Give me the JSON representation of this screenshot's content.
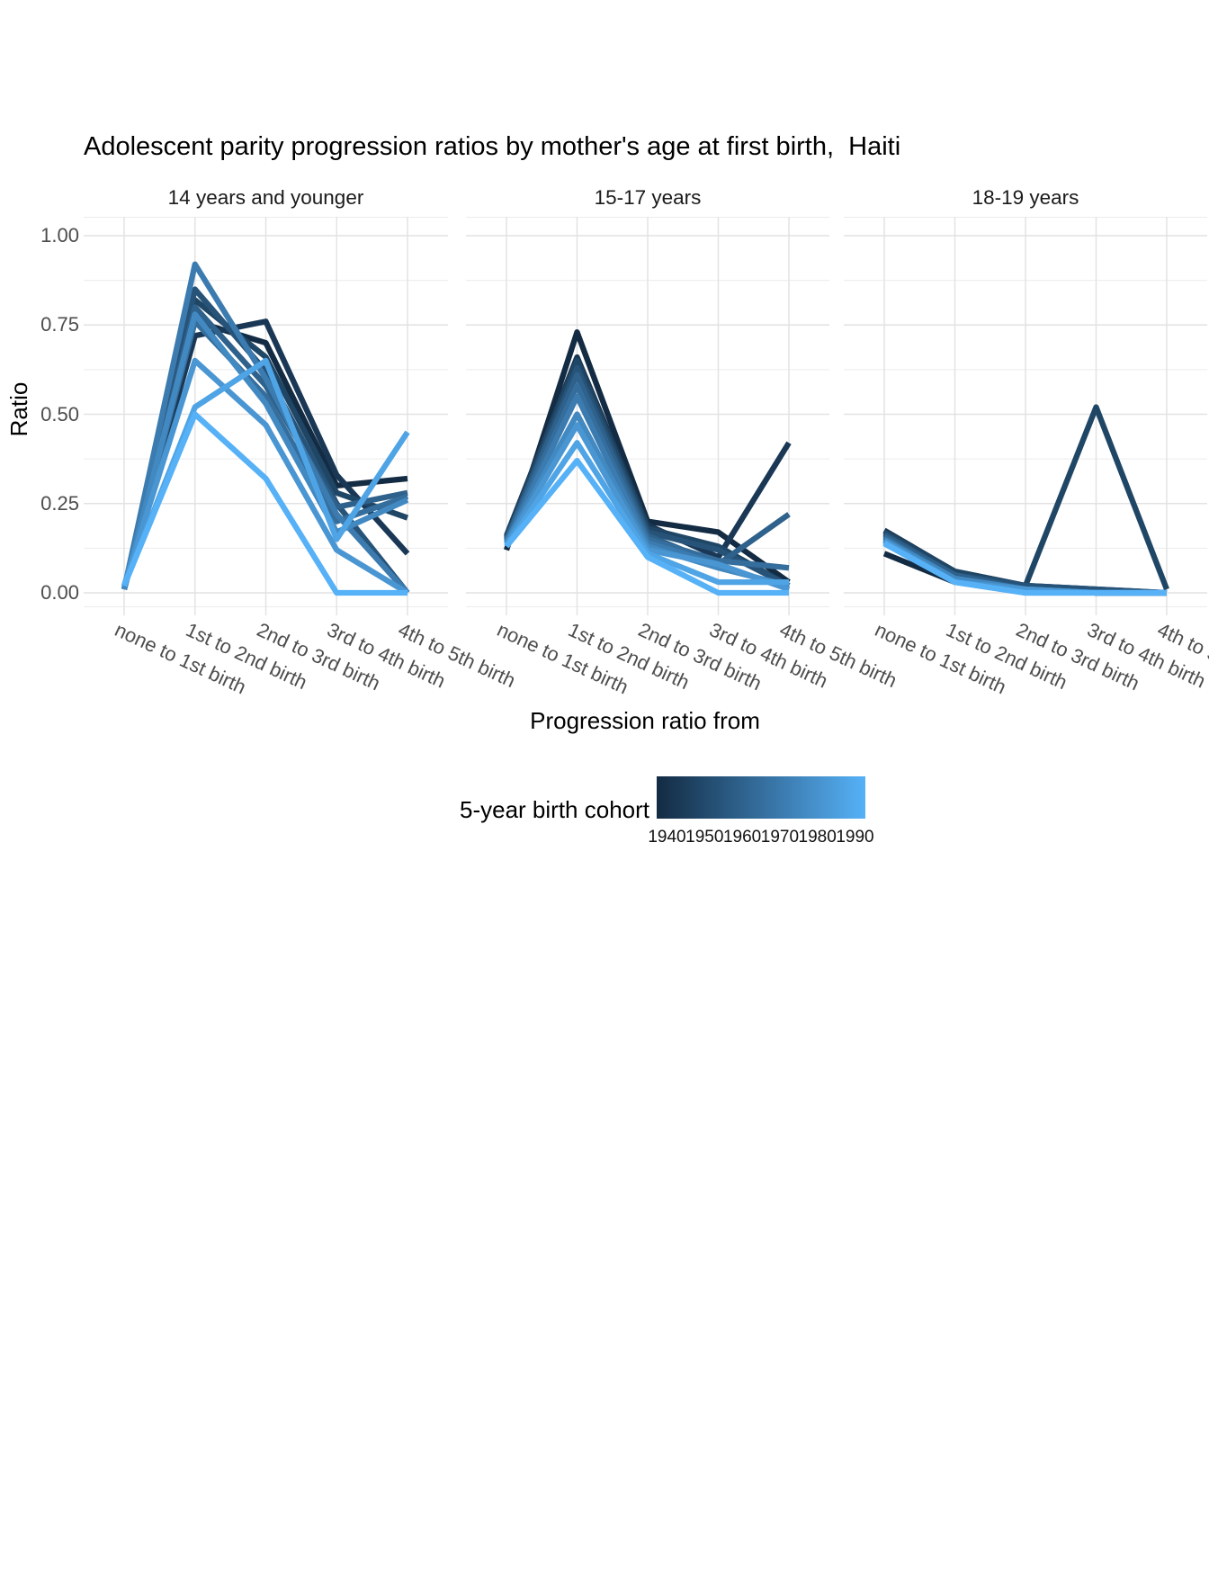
{
  "chart_data": {
    "type": "line",
    "title": "Adolescent parity progression ratios by mother's age at first birth,  Haiti",
    "xlabel": "Progression ratio from",
    "ylabel": "Ratio",
    "grid": "on",
    "ylim": [
      0,
      1
    ],
    "y_ticks": [
      {
        "value": 0.0,
        "label": "0.00"
      },
      {
        "value": 0.25,
        "label": "0.25"
      },
      {
        "value": 0.5,
        "label": "0.50"
      },
      {
        "value": 0.75,
        "label": "0.75"
      },
      {
        "value": 1.0,
        "label": "1.00"
      }
    ],
    "categories": [
      "none to 1st birth",
      "1st to 2nd birth",
      "2nd to 3rd birth",
      "3rd to 4th birth",
      "4th to 5th birth"
    ],
    "legend": {
      "title": "5-year birth cohort",
      "position": "bottom",
      "tick_labels": [
        "1940",
        "1950",
        "1960",
        "1970",
        "1980",
        "1990"
      ],
      "gradient_start": "#132B43",
      "gradient_end": "#56B1F7"
    },
    "cohorts": [
      {
        "year": 1940,
        "color": "#132B43"
      },
      {
        "year": 1945,
        "color": "#1A3855"
      },
      {
        "year": 1950,
        "color": "#204666"
      },
      {
        "year": 1955,
        "color": "#275379"
      },
      {
        "year": 1960,
        "color": "#2E618B"
      },
      {
        "year": 1965,
        "color": "#356E9D"
      },
      {
        "year": 1970,
        "color": "#3B7BAF"
      },
      {
        "year": 1975,
        "color": "#4289C1"
      },
      {
        "year": 1980,
        "color": "#4996D3"
      },
      {
        "year": 1985,
        "color": "#4FA4E5"
      },
      {
        "year": 1990,
        "color": "#56B1F7"
      }
    ],
    "facets": [
      {
        "label": "14 years and younger",
        "series": [
          {
            "cohort": 1940,
            "values": [
              0.01,
              0.76,
              0.7,
              0.3,
              0.32
            ]
          },
          {
            "cohort": 1945,
            "values": [
              0.01,
              0.72,
              0.76,
              0.33,
              0.11
            ]
          },
          {
            "cohort": 1950,
            "values": [
              0.01,
              0.82,
              0.66,
              0.28,
              0.21
            ]
          },
          {
            "cohort": 1955,
            "values": [
              0.01,
              0.85,
              0.62,
              0.25,
              0.0
            ]
          },
          {
            "cohort": 1960,
            "values": [
              0.01,
              0.8,
              0.58,
              0.24,
              0.28
            ]
          },
          {
            "cohort": 1965,
            "values": [
              0.01,
              0.76,
              0.55,
              0.2,
              0.27
            ]
          },
          {
            "cohort": 1970,
            "values": [
              0.01,
              0.92,
              0.6,
              0.22,
              0.0
            ]
          },
          {
            "cohort": 1975,
            "values": [
              0.01,
              0.78,
              0.53,
              0.17,
              0.26
            ]
          },
          {
            "cohort": 1980,
            "values": [
              0.02,
              0.65,
              0.47,
              0.12,
              0.0
            ]
          },
          {
            "cohort": 1985,
            "values": [
              0.02,
              0.52,
              0.65,
              0.15,
              0.45
            ]
          },
          {
            "cohort": 1990,
            "values": [
              0.02,
              0.5,
              0.32,
              0.0,
              0.0
            ]
          }
        ]
      },
      {
        "label": "15-17 years",
        "series": [
          {
            "cohort": 1940,
            "values": [
              0.12,
              0.73,
              0.2,
              0.17,
              0.03
            ]
          },
          {
            "cohort": 1945,
            "values": [
              0.16,
              0.66,
              0.19,
              0.1,
              0.42
            ]
          },
          {
            "cohort": 1950,
            "values": [
              0.155,
              0.65,
              0.18,
              0.13,
              0.02
            ]
          },
          {
            "cohort": 1955,
            "values": [
              0.15,
              0.63,
              0.17,
              0.12,
              0.02
            ]
          },
          {
            "cohort": 1960,
            "values": [
              0.15,
              0.61,
              0.16,
              0.08,
              0.22
            ]
          },
          {
            "cohort": 1965,
            "values": [
              0.145,
              0.58,
              0.15,
              0.09,
              0.07
            ]
          },
          {
            "cohort": 1970,
            "values": [
              0.14,
              0.55,
              0.14,
              0.08,
              0.01
            ]
          },
          {
            "cohort": 1975,
            "values": [
              0.14,
              0.5,
              0.13,
              0.07,
              0.02
            ]
          },
          {
            "cohort": 1980,
            "values": [
              0.135,
              0.47,
              0.12,
              0.08,
              0.01
            ]
          },
          {
            "cohort": 1985,
            "values": [
              0.13,
              0.42,
              0.11,
              0.03,
              0.03
            ]
          },
          {
            "cohort": 1990,
            "values": [
              0.13,
              0.37,
              0.1,
              0.0,
              0.0
            ]
          }
        ]
      },
      {
        "label": "18-19 years",
        "series": [
          {
            "cohort": 1940,
            "values": [
              0.11,
              0.03,
              0.01,
              0.0,
              0.0
            ]
          },
          {
            "cohort": 1945,
            "values": [
              0.175,
              0.06,
              0.02,
              0.01,
              0.0
            ]
          },
          {
            "cohort": 1950,
            "values": [
              0.17,
              0.06,
              0.02,
              0.52,
              0.01
            ]
          },
          {
            "cohort": 1955,
            "values": [
              0.165,
              0.05,
              0.02,
              0.01,
              0.0
            ]
          },
          {
            "cohort": 1960,
            "values": [
              0.16,
              0.05,
              0.01,
              0.0,
              0.0
            ]
          },
          {
            "cohort": 1965,
            "values": [
              0.155,
              0.04,
              0.01,
              0.0,
              0.0
            ]
          },
          {
            "cohort": 1970,
            "values": [
              0.15,
              0.04,
              0.01,
              0.0,
              0.0
            ]
          },
          {
            "cohort": 1975,
            "values": [
              0.148,
              0.04,
              0.01,
              0.0,
              0.0
            ]
          },
          {
            "cohort": 1980,
            "values": [
              0.145,
              0.03,
              0.01,
              0.0,
              0.0
            ]
          },
          {
            "cohort": 1985,
            "values": [
              0.14,
              0.03,
              0.0,
              0.0,
              0.0
            ]
          },
          {
            "cohort": 1990,
            "values": [
              0.138,
              0.03,
              0.0,
              0.0,
              0.0
            ]
          }
        ]
      }
    ]
  }
}
